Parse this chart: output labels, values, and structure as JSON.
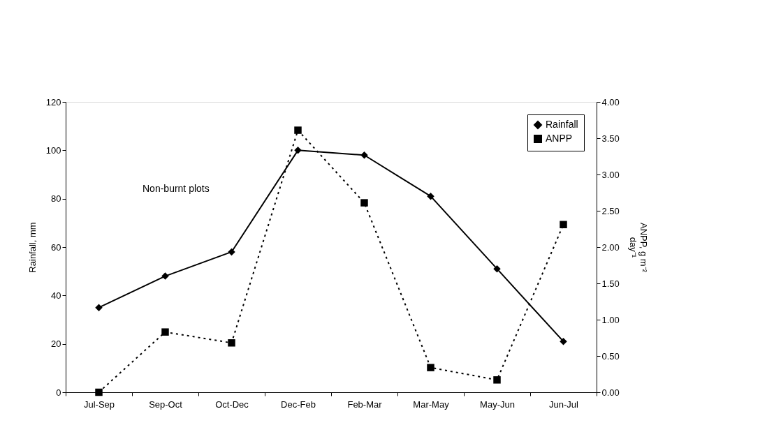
{
  "chart_data": {
    "type": "line",
    "categories": [
      "Jul-Sep",
      "Sep-Oct",
      "Oct-Dec",
      "Dec-Feb",
      "Feb-Mar",
      "Mar-May",
      "May-Jun",
      "Jun-Jul"
    ],
    "series": [
      {
        "name": "Rainfall",
        "color": "#000000",
        "marker": "diamond",
        "line_style": "solid",
        "values": [
          35,
          48,
          58,
          100,
          98,
          81,
          51,
          21
        ]
      },
      {
        "name": "ANPP",
        "color": "#000000",
        "marker": "square",
        "line_style": "dotted",
        "axis": "y2",
        "values": [
          0,
          0.83,
          0.68,
          3.61,
          2.61,
          0.34,
          0.17,
          2.31
        ]
      }
    ],
    "ylabel": "Rainfall, mm",
    "y2label": "ANPP, g m⁻² day⁻¹",
    "ylim": [
      0,
      120
    ],
    "yticks": [
      0,
      20,
      40,
      60,
      80,
      100,
      120
    ],
    "y2lim": [
      0,
      4
    ],
    "y2ticks": [
      {
        "value": 0,
        "label": "0.00"
      },
      {
        "value": 0.5,
        "label": "0.50"
      },
      {
        "value": 1,
        "label": "1.00"
      },
      {
        "value": 1.5,
        "label": "1.50"
      },
      {
        "value": 2,
        "label": "2.00"
      },
      {
        "value": 2.5,
        "label": "2.50"
      },
      {
        "value": 3,
        "label": "3.00"
      },
      {
        "value": 3.5,
        "label": "3.50"
      },
      {
        "value": 4,
        "label": "4.00"
      }
    ],
    "annotations": [
      "Non-burnt plots"
    ],
    "grid": false,
    "legend": "top right"
  }
}
